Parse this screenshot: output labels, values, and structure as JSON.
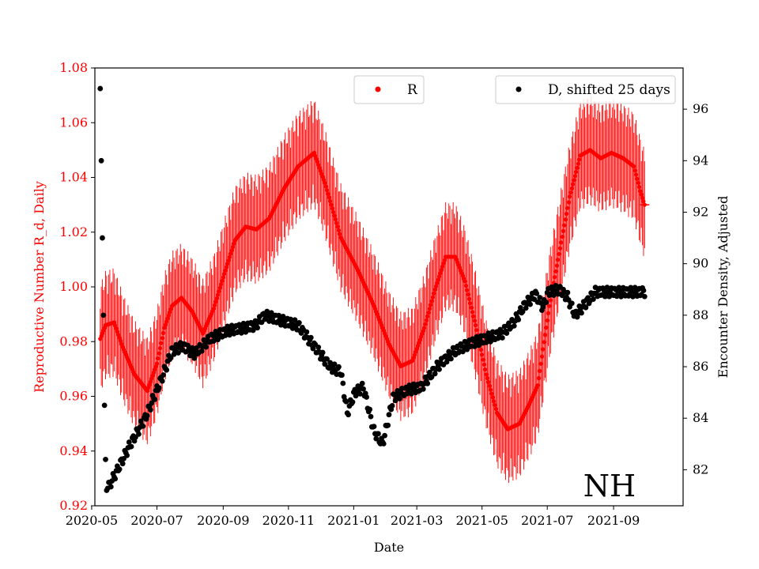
{
  "chart_data": {
    "type": "scatter",
    "xlabel": "Date",
    "ylabel_left": "Reproductive Number R_d, Daily",
    "ylabel_right": "Encounter Density, Adjusted",
    "annotation": "NH",
    "x_range": [
      "2020-05-09",
      "2021-09-30"
    ],
    "x_ticks": [
      "2020-05",
      "2020-07",
      "2020-09",
      "2020-11",
      "2021-01",
      "2021-03",
      "2021-05",
      "2021-07",
      "2021-09"
    ],
    "y_left": {
      "range": [
        0.92,
        1.08
      ],
      "ticks": [
        "0.92",
        "0.94",
        "0.96",
        "0.98",
        "1.00",
        "1.02",
        "1.04",
        "1.06",
        "1.08"
      ]
    },
    "y_right": {
      "range": [
        80.6,
        97.6
      ],
      "ticks": [
        "82",
        "84",
        "86",
        "88",
        "90",
        "92",
        "94",
        "96"
      ]
    },
    "legend": {
      "r_label": "R",
      "d_label": "D, shifted 25 days"
    },
    "colors": {
      "r": "#ff0000",
      "d": "#000000",
      "left_axis": "#ff0000",
      "right_axis": "#000000"
    },
    "series": [
      {
        "name": "R",
        "axis": "left",
        "error_half_width_approx": 0.02,
        "keypoints": [
          [
            "2020-05-09",
            0.981
          ],
          [
            "2020-05-14",
            0.986
          ],
          [
            "2020-05-22",
            0.987
          ],
          [
            "2020-05-30",
            0.978
          ],
          [
            "2020-06-10",
            0.968
          ],
          [
            "2020-06-22",
            0.962
          ],
          [
            "2020-07-01",
            0.972
          ],
          [
            "2020-07-08",
            0.985
          ],
          [
            "2020-07-15",
            0.993
          ],
          [
            "2020-07-24",
            0.996
          ],
          [
            "2020-08-03",
            0.991
          ],
          [
            "2020-08-13",
            0.983
          ],
          [
            "2020-08-23",
            0.992
          ],
          [
            "2020-09-03",
            1.006
          ],
          [
            "2020-09-12",
            1.017
          ],
          [
            "2020-09-22",
            1.022
          ],
          [
            "2020-10-02",
            1.021
          ],
          [
            "2020-10-14",
            1.025
          ],
          [
            "2020-10-28",
            1.036
          ],
          [
            "2020-11-10",
            1.044
          ],
          [
            "2020-11-25",
            1.049
          ],
          [
            "2020-12-05",
            1.038
          ],
          [
            "2020-12-20",
            1.018
          ],
          [
            "2021-01-05",
            1.006
          ],
          [
            "2021-01-20",
            0.993
          ],
          [
            "2021-02-03",
            0.979
          ],
          [
            "2021-02-14",
            0.971
          ],
          [
            "2021-02-25",
            0.973
          ],
          [
            "2021-03-08",
            0.985
          ],
          [
            "2021-03-18",
            0.999
          ],
          [
            "2021-03-28",
            1.011
          ],
          [
            "2021-04-06",
            1.011
          ],
          [
            "2021-04-15",
            1.002
          ],
          [
            "2021-04-25",
            0.986
          ],
          [
            "2021-05-05",
            0.968
          ],
          [
            "2021-05-15",
            0.954
          ],
          [
            "2021-05-25",
            0.948
          ],
          [
            "2021-06-05",
            0.95
          ],
          [
            "2021-06-14",
            0.957
          ],
          [
            "2021-06-22",
            0.964
          ],
          [
            "2021-07-03",
            0.993
          ],
          [
            "2021-07-12",
            1.012
          ],
          [
            "2021-07-22",
            1.033
          ],
          [
            "2021-08-01",
            1.048
          ],
          [
            "2021-08-10",
            1.05
          ],
          [
            "2021-08-20",
            1.047
          ],
          [
            "2021-08-30",
            1.049
          ],
          [
            "2021-09-10",
            1.047
          ],
          [
            "2021-09-20",
            1.044
          ],
          [
            "2021-09-26",
            1.035
          ],
          [
            "2021-09-30",
            1.03
          ]
        ]
      },
      {
        "name": "D, shifted 25 days",
        "axis": "right",
        "keypoints": [
          [
            "2020-05-09",
            96.8
          ],
          [
            "2020-05-10",
            94.0
          ],
          [
            "2020-05-11",
            91.0
          ],
          [
            "2020-05-12",
            88.0
          ],
          [
            "2020-05-13",
            84.5
          ],
          [
            "2020-05-14",
            82.4
          ],
          [
            "2020-05-15",
            81.2
          ],
          [
            "2020-05-24",
            81.9
          ],
          [
            "2020-06-05",
            82.9
          ],
          [
            "2020-06-20",
            84.0
          ],
          [
            "2020-07-05",
            85.5
          ],
          [
            "2020-07-15",
            86.6
          ],
          [
            "2020-07-25",
            86.8
          ],
          [
            "2020-08-05",
            86.5
          ],
          [
            "2020-08-20",
            87.1
          ],
          [
            "2020-09-05",
            87.4
          ],
          [
            "2020-09-20",
            87.5
          ],
          [
            "2020-10-01",
            87.6
          ],
          [
            "2020-10-10",
            88.0
          ],
          [
            "2020-10-25",
            87.8
          ],
          [
            "2020-11-10",
            87.6
          ],
          [
            "2020-11-25",
            86.8
          ],
          [
            "2020-12-10",
            86.0
          ],
          [
            "2020-12-20",
            85.8
          ],
          [
            "2020-12-26",
            84.2
          ],
          [
            "2021-01-02",
            85.0
          ],
          [
            "2021-01-10",
            85.2
          ],
          [
            "2021-01-20",
            83.5
          ],
          [
            "2021-01-28",
            83.0
          ],
          [
            "2021-02-07",
            84.8
          ],
          [
            "2021-02-20",
            85.1
          ],
          [
            "2021-03-05",
            85.2
          ],
          [
            "2021-03-20",
            86.0
          ],
          [
            "2021-04-05",
            86.6
          ],
          [
            "2021-04-20",
            86.9
          ],
          [
            "2021-05-05",
            87.1
          ],
          [
            "2021-05-20",
            87.3
          ],
          [
            "2021-06-01",
            87.8
          ],
          [
            "2021-06-10",
            88.4
          ],
          [
            "2021-06-20",
            88.8
          ],
          [
            "2021-06-27",
            88.3
          ],
          [
            "2021-07-02",
            88.9
          ],
          [
            "2021-07-12",
            89.0
          ],
          [
            "2021-07-20",
            88.7
          ],
          [
            "2021-07-27",
            88.0
          ],
          [
            "2021-08-05",
            88.4
          ],
          [
            "2021-08-15",
            88.9
          ],
          [
            "2021-09-30",
            88.9
          ]
        ]
      }
    ]
  }
}
